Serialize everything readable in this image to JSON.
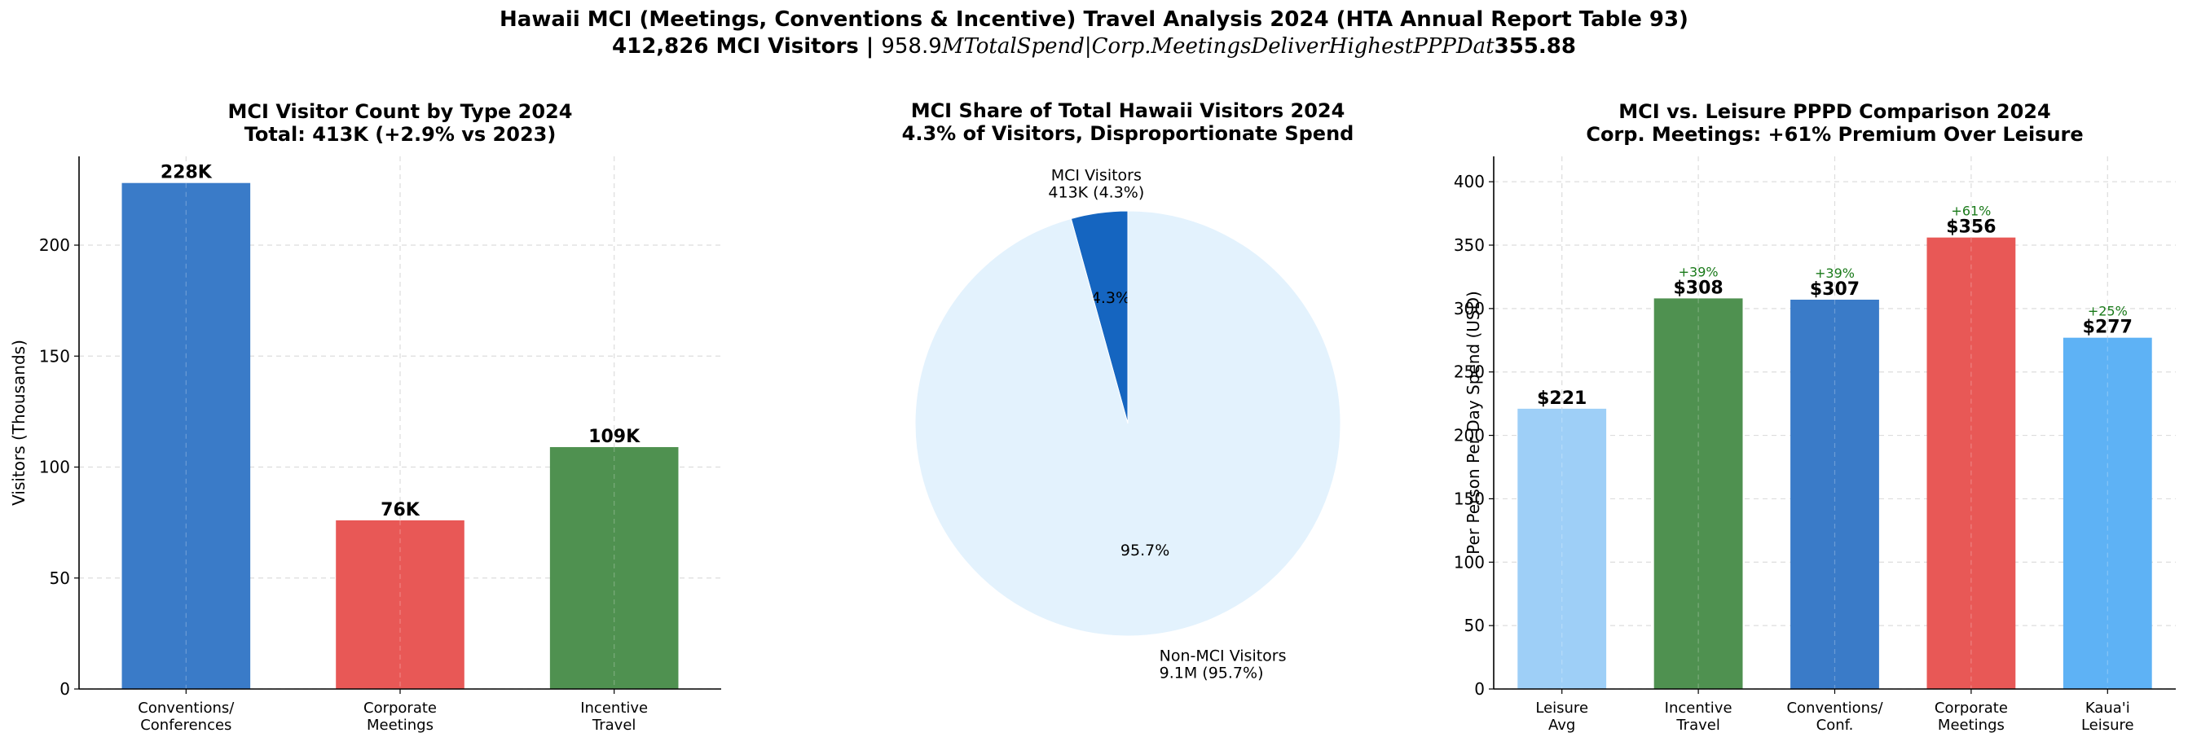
{
  "figure": {
    "title_line1": "Hawaii MCI (Meetings, Conventions & Incentive) Travel Analysis 2024 (HTA Annual Report Table 93)",
    "title_line2_a": "412,826 MCI Visitors | ",
    "title_line2_b": "958.9",
    "title_line2_c": "MTotalSpend|Corp.MeetingsDeliverHighestPPPDat",
    "title_line2_d": "355.88"
  },
  "chart_data": [
    {
      "type": "bar",
      "title": "MCI Visitor Count by Type 2024",
      "subtitle": "Total: 413K (+2.9% vs 2023)",
      "xlabel": "",
      "ylabel": "Visitors (Thousands)",
      "categories": [
        "Conventions/\nConferences",
        "Corporate\nMeetings",
        "Incentive\nTravel"
      ],
      "values": [
        228,
        76,
        109
      ],
      "data_labels": [
        "228K",
        "76K",
        "109K"
      ],
      "colors": [
        "#3a7bc8",
        "#e85856",
        "#4f9150"
      ],
      "ylim": [
        0,
        240
      ],
      "yticks": [
        0,
        50,
        100,
        150,
        200
      ],
      "grid": true
    },
    {
      "type": "pie",
      "title": "MCI Share of Total Hawaii Visitors 2024",
      "subtitle": "4.3% of Visitors, Disproportionate Spend",
      "slices": [
        {
          "label": "MCI Visitors\n413K (4.3%)",
          "value": 4.3,
          "pct_label": "4.3%",
          "color": "#1565c0"
        },
        {
          "label": "Non-MCI Visitors\n9.1M (95.7%)",
          "value": 95.7,
          "pct_label": "95.7%",
          "color": "#e3f2fd"
        }
      ]
    },
    {
      "type": "bar",
      "title": "MCI vs. Leisure PPPD Comparison 2024",
      "subtitle": "Corp. Meetings: +61% Premium Over Leisure",
      "xlabel": "",
      "ylabel": "Per Person Per Day Spend (USD)",
      "categories": [
        "Leisure\nAvg",
        "Incentive\nTravel",
        "Conventions/\nConf.",
        "Corporate\nMeetings",
        "Kaua'i\nLeisure"
      ],
      "values": [
        221,
        308,
        307,
        356,
        277
      ],
      "data_labels": [
        "$221",
        "$308",
        "$307",
        "$356",
        "$277"
      ],
      "premium_labels": [
        "",
        "+39%",
        "+39%",
        "+61%",
        "+25%"
      ],
      "colors": [
        "#9ecff7",
        "#4f9150",
        "#3a7bc8",
        "#e85856",
        "#5eb2f5"
      ],
      "ylim": [
        0,
        420
      ],
      "yticks": [
        0,
        50,
        100,
        150,
        200,
        250,
        300,
        350,
        400
      ],
      "grid": true
    }
  ]
}
